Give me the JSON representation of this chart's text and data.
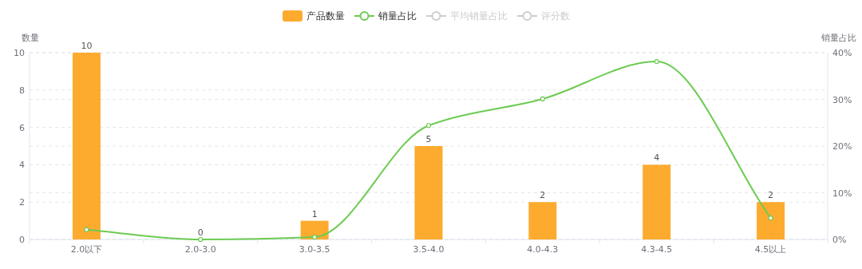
{
  "chart_data": {
    "type": "bar",
    "categories": [
      "2.0以下",
      "2.0-3.0",
      "3.0-3.5",
      "3.5-4.0",
      "4.0-4.3",
      "4.3-4.5",
      "4.5以上"
    ],
    "ylabel": "数量",
    "y2label": "销量占比",
    "ylim": [
      0,
      10
    ],
    "yticks": [
      0,
      2,
      4,
      6,
      8,
      10
    ],
    "y2lim": [
      0,
      40
    ],
    "y2ticks": [
      {
        "value": 0,
        "label": "0%"
      },
      {
        "value": 10,
        "label": "10%"
      },
      {
        "value": 20,
        "label": "20%"
      },
      {
        "value": 30,
        "label": "30%"
      },
      {
        "value": 40,
        "label": "40%"
      }
    ],
    "grid": true,
    "legend": "top",
    "series": [
      {
        "name": "产品数量",
        "color": "#fdab2f",
        "values": [
          10,
          0,
          1,
          5,
          2,
          4,
          2
        ],
        "data_labels": true
      },
      {
        "name": "销量占比",
        "type": "line",
        "axis": "y2",
        "color": "#6ccb52",
        "marker": "circle",
        "values": [
          2.1,
          0,
          0.5,
          24.4,
          30.1,
          38.1,
          4.6
        ]
      },
      {
        "name": "平均销量占比",
        "type": "line",
        "axis": "y2",
        "color": "#cccccc",
        "marker": "circle",
        "values": [
          null,
          null,
          null,
          null,
          null,
          null,
          null
        ]
      },
      {
        "name": "评分数",
        "type": "line",
        "axis": "y2",
        "color": "#cccccc",
        "marker": "circle",
        "values": [
          null,
          null,
          null,
          null,
          null,
          null,
          null
        ]
      }
    ]
  }
}
